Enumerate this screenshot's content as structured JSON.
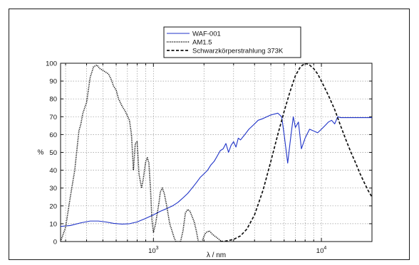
{
  "chart_data": {
    "type": "line",
    "title": "",
    "xlabel": "λ / nm",
    "ylabel": "%",
    "x_scale": "log",
    "xlim": [
      280,
      20000
    ],
    "ylim": [
      0,
      100
    ],
    "grid": true,
    "legend_position": "top-center",
    "x_tick_labels": [
      {
        "value": 1000,
        "base": "10",
        "exp": "3"
      },
      {
        "value": 10000,
        "base": "10",
        "exp": "4"
      }
    ],
    "y_ticks": [
      0,
      10,
      20,
      30,
      40,
      50,
      60,
      70,
      80,
      90,
      100
    ],
    "series": [
      {
        "name": "WAF-001",
        "color": "#1f33c8",
        "style": "solid",
        "points": [
          [
            280,
            8.5
          ],
          [
            320,
            9
          ],
          [
            370,
            10.5
          ],
          [
            420,
            11.5
          ],
          [
            470,
            11.5
          ],
          [
            520,
            11
          ],
          [
            580,
            10.2
          ],
          [
            650,
            9.8
          ],
          [
            720,
            10
          ],
          [
            800,
            11
          ],
          [
            900,
            13
          ],
          [
            1000,
            15
          ],
          [
            1100,
            17
          ],
          [
            1200,
            18.5
          ],
          [
            1300,
            20
          ],
          [
            1400,
            22
          ],
          [
            1500,
            24.5
          ],
          [
            1600,
            27
          ],
          [
            1700,
            30
          ],
          [
            1800,
            33
          ],
          [
            1900,
            36
          ],
          [
            2000,
            38
          ],
          [
            2100,
            40
          ],
          [
            2200,
            43
          ],
          [
            2300,
            45
          ],
          [
            2400,
            48
          ],
          [
            2500,
            51
          ],
          [
            2600,
            52
          ],
          [
            2700,
            55
          ],
          [
            2800,
            50
          ],
          [
            2900,
            54
          ],
          [
            3000,
            56
          ],
          [
            3100,
            53
          ],
          [
            3200,
            58
          ],
          [
            3300,
            57
          ],
          [
            3500,
            60
          ],
          [
            3700,
            63
          ],
          [
            4000,
            66
          ],
          [
            4200,
            68
          ],
          [
            4500,
            69
          ],
          [
            5000,
            71
          ],
          [
            5500,
            72
          ],
          [
            5800,
            70
          ],
          [
            6000,
            60
          ],
          [
            6300,
            44
          ],
          [
            6500,
            55
          ],
          [
            6800,
            70
          ],
          [
            7000,
            64
          ],
          [
            7300,
            67
          ],
          [
            7600,
            52
          ],
          [
            8000,
            58
          ],
          [
            8500,
            63
          ],
          [
            9000,
            62
          ],
          [
            9500,
            61
          ],
          [
            10000,
            63
          ],
          [
            10500,
            65
          ],
          [
            11000,
            67
          ],
          [
            11500,
            68
          ],
          [
            12000,
            66
          ],
          [
            12500,
            70
          ],
          [
            13000,
            69.5
          ],
          [
            15000,
            69.5
          ],
          [
            20000,
            69.5
          ]
        ]
      },
      {
        "name": "AM1.5",
        "color": "#111111",
        "style": "dotted",
        "points": [
          [
            280,
            0
          ],
          [
            300,
            8
          ],
          [
            320,
            25
          ],
          [
            340,
            40
          ],
          [
            360,
            62
          ],
          [
            370,
            66
          ],
          [
            380,
            72
          ],
          [
            400,
            78
          ],
          [
            420,
            92
          ],
          [
            440,
            98
          ],
          [
            460,
            99
          ],
          [
            480,
            97
          ],
          [
            500,
            96
          ],
          [
            520,
            95
          ],
          [
            540,
            94
          ],
          [
            560,
            91
          ],
          [
            580,
            87
          ],
          [
            600,
            85
          ],
          [
            620,
            80
          ],
          [
            650,
            76
          ],
          [
            680,
            73
          ],
          [
            720,
            68
          ],
          [
            740,
            60
          ],
          [
            760,
            40
          ],
          [
            780,
            55
          ],
          [
            800,
            56
          ],
          [
            820,
            38
          ],
          [
            850,
            30
          ],
          [
            870,
            35
          ],
          [
            900,
            45
          ],
          [
            920,
            47
          ],
          [
            940,
            44
          ],
          [
            960,
            30
          ],
          [
            980,
            12
          ],
          [
            1000,
            5
          ],
          [
            1030,
            10
          ],
          [
            1080,
            22
          ],
          [
            1100,
            28
          ],
          [
            1130,
            30
          ],
          [
            1160,
            27
          ],
          [
            1200,
            20
          ],
          [
            1250,
            10
          ],
          [
            1300,
            5
          ],
          [
            1330,
            2
          ],
          [
            1360,
            0
          ],
          [
            1450,
            0
          ],
          [
            1500,
            6
          ],
          [
            1550,
            16
          ],
          [
            1600,
            18
          ],
          [
            1650,
            17
          ],
          [
            1700,
            14
          ],
          [
            1750,
            11
          ],
          [
            1800,
            6
          ],
          [
            1850,
            0
          ],
          [
            1950,
            0
          ],
          [
            2000,
            3
          ],
          [
            2050,
            5
          ],
          [
            2150,
            6
          ],
          [
            2250,
            4
          ],
          [
            2400,
            2
          ],
          [
            2550,
            0
          ]
        ]
      },
      {
        "name": "Schwarzkörperstrahlung 373K",
        "color": "#111111",
        "style": "dashed",
        "points": [
          [
            2500,
            0
          ],
          [
            2700,
            0.3
          ],
          [
            3000,
            1.2
          ],
          [
            3300,
            3.2
          ],
          [
            3600,
            7
          ],
          [
            4000,
            15
          ],
          [
            4500,
            29
          ],
          [
            5000,
            45
          ],
          [
            5500,
            60
          ],
          [
            6000,
            73
          ],
          [
            6500,
            84
          ],
          [
            7000,
            93
          ],
          [
            7500,
            98
          ],
          [
            8000,
            100
          ],
          [
            8500,
            99
          ],
          [
            9000,
            97
          ],
          [
            9500,
            94
          ],
          [
            10000,
            90
          ],
          [
            11000,
            82
          ],
          [
            12000,
            74
          ],
          [
            13000,
            65
          ],
          [
            14000,
            57
          ],
          [
            15000,
            50
          ],
          [
            16000,
            44
          ],
          [
            17000,
            38
          ],
          [
            18000,
            33
          ],
          [
            19000,
            28.5
          ],
          [
            20000,
            25
          ]
        ]
      }
    ]
  }
}
